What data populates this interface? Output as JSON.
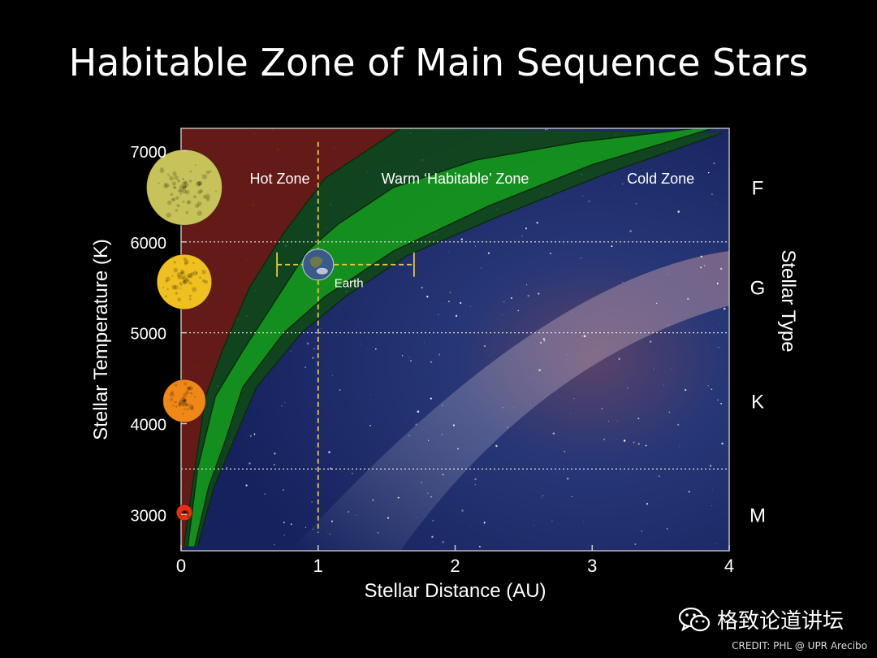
{
  "title": "Habitable Zone of Main Sequence Stars",
  "watermark": "格致论道讲坛",
  "watermark_icon": "wechat-icon",
  "credit": "CREDIT: PHL @ UPR Arecibo",
  "chart_data": {
    "type": "area",
    "xlabel": "Stellar Distance (AU)",
    "ylabel": "Stellar Temperature (K)",
    "y2label": "Stellar Type",
    "xlim": [
      0,
      4
    ],
    "ylim": [
      2600,
      7250
    ],
    "xticks": [
      0,
      1,
      2,
      3,
      4
    ],
    "yticks": [
      3000,
      4000,
      5000,
      6000,
      7000
    ],
    "type_boundaries": [
      3500,
      5000,
      6000
    ],
    "stellar_types": [
      {
        "label": "F",
        "temp": 6600
      },
      {
        "label": "G",
        "temp": 5500
      },
      {
        "label": "K",
        "temp": 4250
      },
      {
        "label": "M",
        "temp": 3000
      }
    ],
    "zones": [
      {
        "label": "Hot Zone",
        "x": 0.72,
        "y": 6640
      },
      {
        "label": "Warm ‘Habitable’ Zone",
        "x": 2.0,
        "y": 6640
      },
      {
        "label": "Cold Zone",
        "x": 3.5,
        "y": 6640
      }
    ],
    "zone_colors": {
      "hot": "#6b1a10",
      "warm_dark": "#0f4a14",
      "warm": "#15a020",
      "cold": "#1a2868"
    },
    "habitable_zone": {
      "series": [
        {
          "name": "conservative_inner",
          "x": [
            0.05,
            0.12,
            0.25,
            0.45,
            0.75,
            0.92,
            1.15,
            1.55,
            2.15,
            2.9,
            3.75
          ],
          "y": [
            2650,
            3500,
            4300,
            4800,
            5500,
            5900,
            6200,
            6600,
            6900,
            7100,
            7250
          ]
        },
        {
          "name": "optimistic_inner",
          "x": [
            0.02,
            0.1,
            0.18,
            0.3,
            0.5,
            0.75,
            1.05,
            1.6
          ],
          "y": [
            2650,
            3500,
            4300,
            4800,
            5500,
            6100,
            6700,
            7250
          ]
        },
        {
          "name": "conservative_outer",
          "x": [
            0.1,
            0.2,
            0.32,
            0.45,
            0.75,
            1.05,
            1.55,
            2.25,
            3.0,
            3.88
          ],
          "y": [
            2650,
            3300,
            3800,
            4400,
            5000,
            5400,
            5900,
            6400,
            6850,
            7250
          ]
        },
        {
          "name": "optimistic_outer",
          "x": [
            0.12,
            0.24,
            0.38,
            0.55,
            0.88,
            1.2,
            1.65,
            2.35,
            3.1,
            3.95
          ],
          "y": [
            2650,
            3300,
            3800,
            4400,
            5000,
            5400,
            5850,
            6300,
            6750,
            7200
          ]
        }
      ]
    },
    "earth": {
      "label": "Earth",
      "x": 1.0,
      "y": 5750,
      "xerr": [
        0.7,
        1.7
      ],
      "vline_y": [
        2800,
        7100
      ]
    },
    "stars": [
      {
        "temp": 6600,
        "color": "#c8c25a",
        "radius": 0.62
      },
      {
        "temp": 5560,
        "color": "#f0c020",
        "radius": 0.45
      },
      {
        "temp": 4250,
        "color": "#f08818",
        "radius": 0.35
      },
      {
        "temp": 3020,
        "color": "#e83010",
        "radius": 0.13
      }
    ]
  }
}
